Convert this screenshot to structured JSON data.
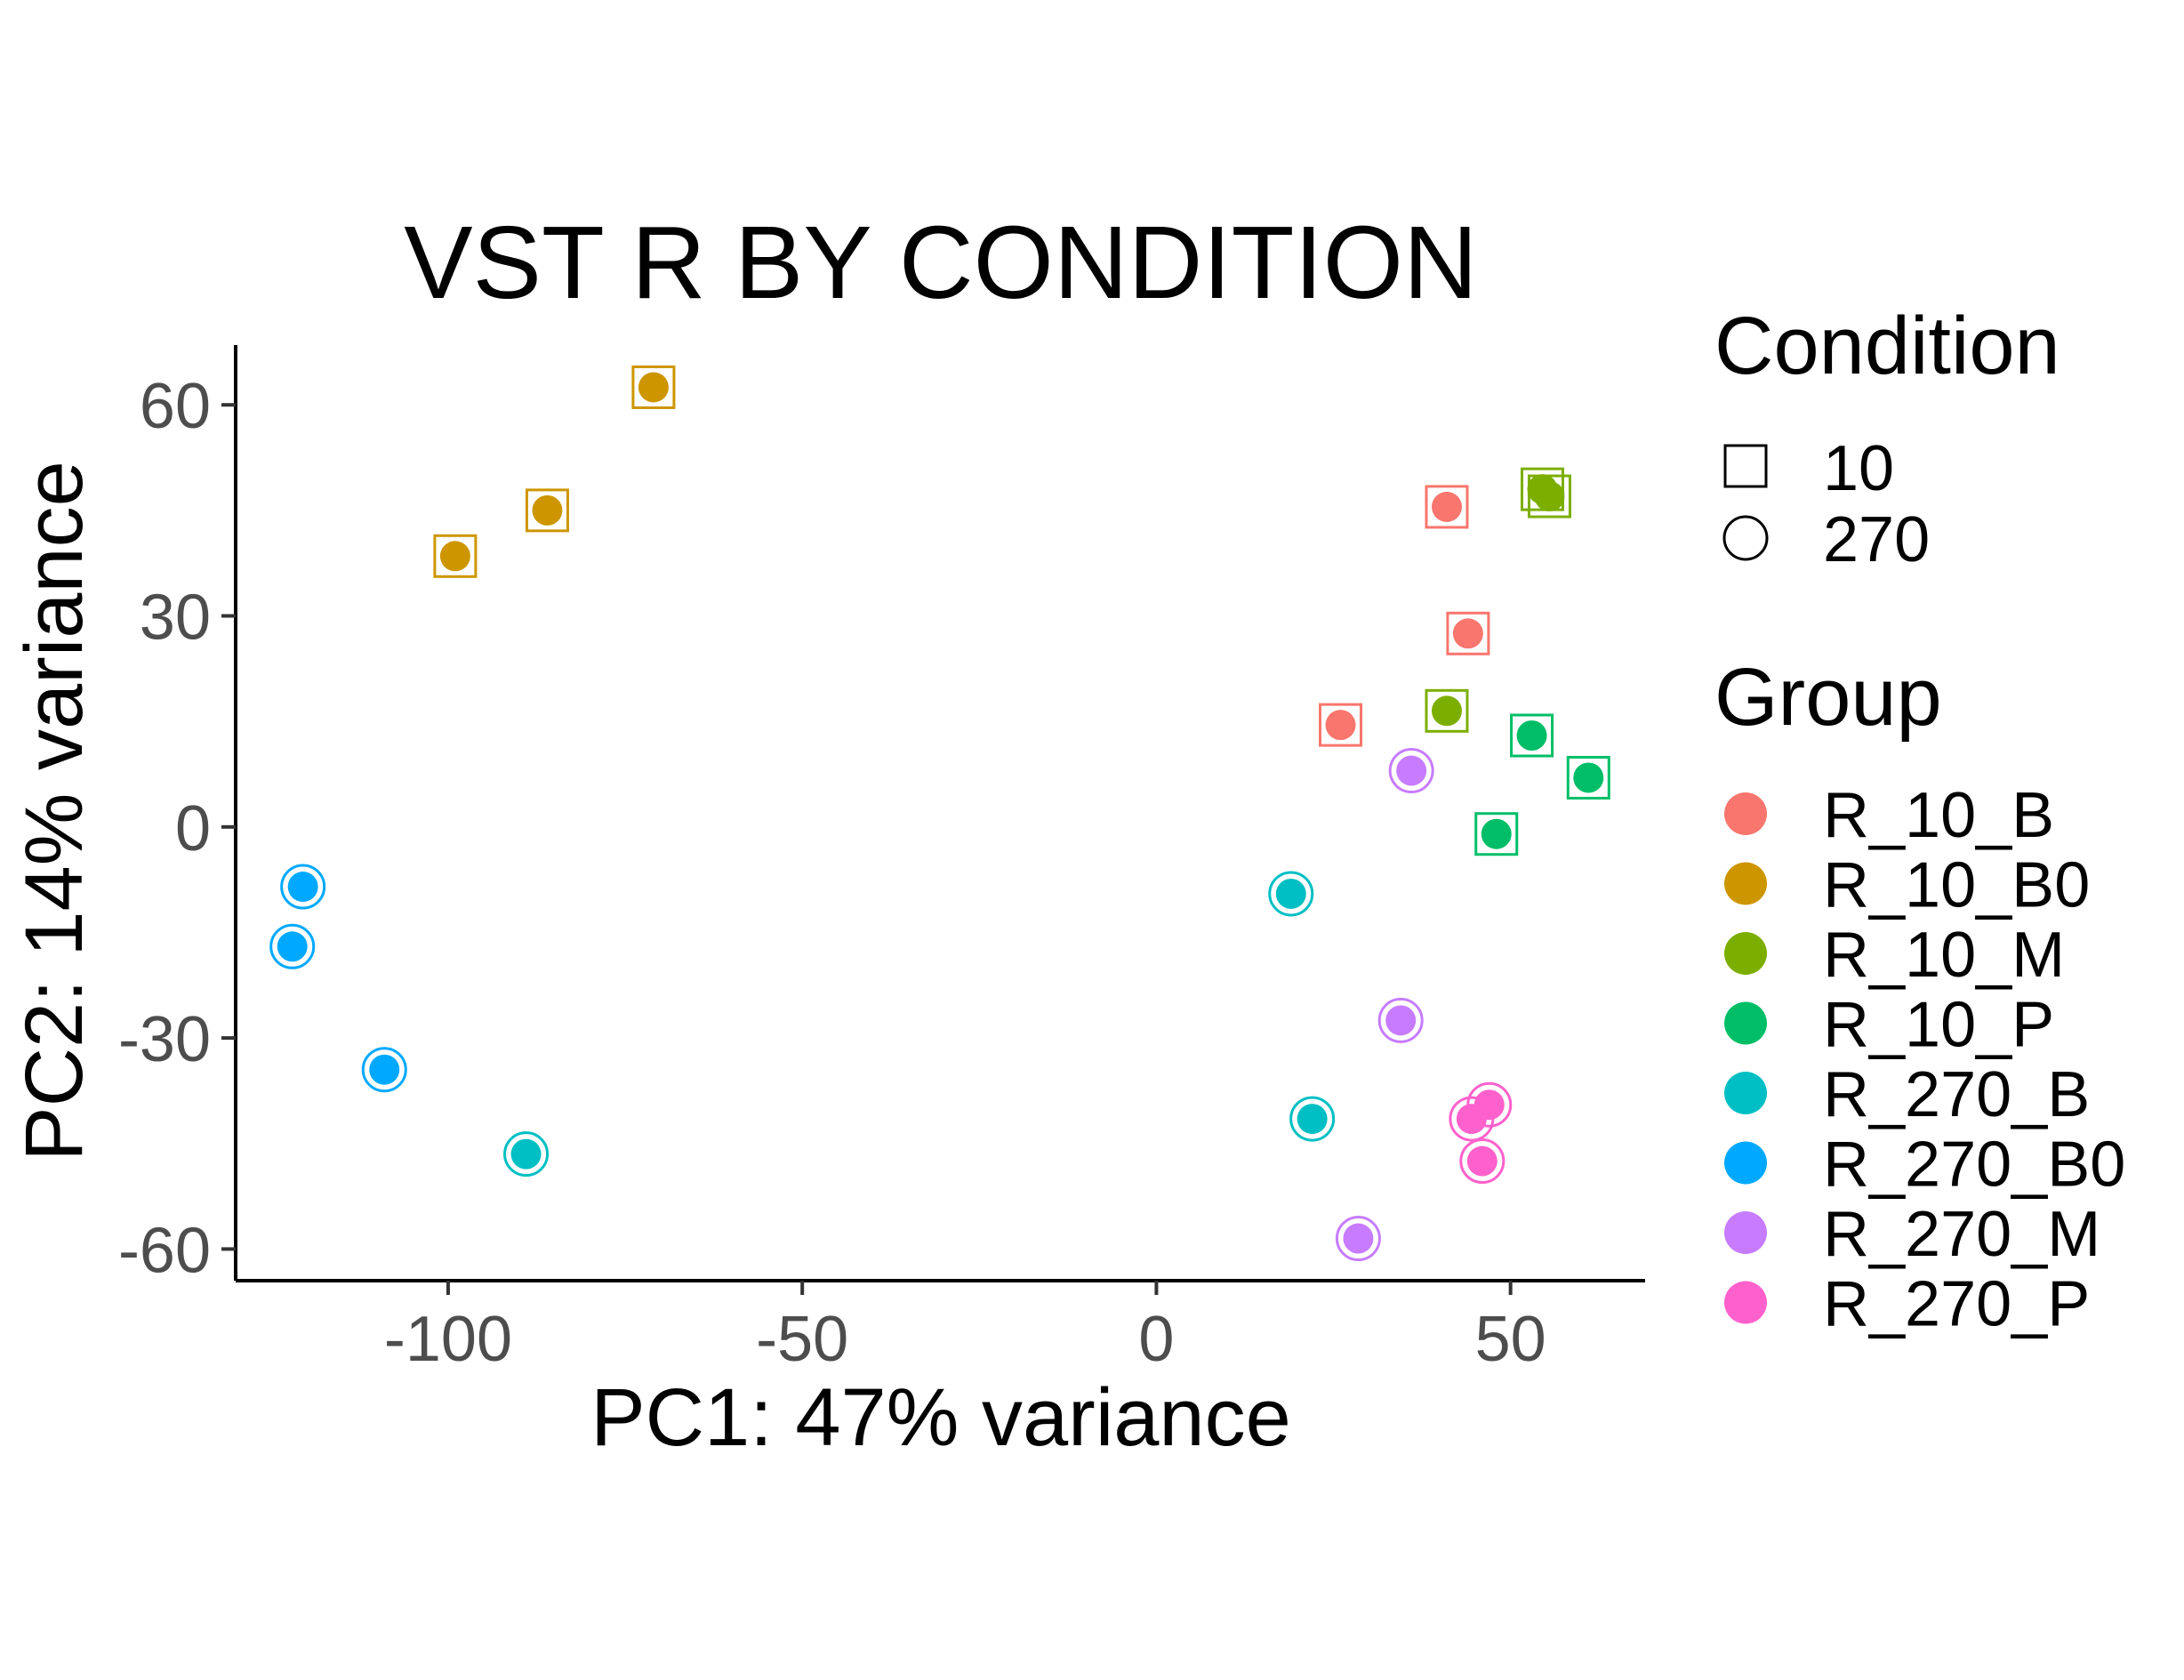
{
  "chart_data": {
    "type": "scatter",
    "title": "VST R BY CONDITION",
    "xlabel": "PC1: 47% variance",
    "ylabel": "PC2: 14% variance",
    "xlim": [
      -130,
      69
    ],
    "ylim": [
      -64.5,
      68.5
    ],
    "xticks": [
      -100,
      -50,
      0,
      50
    ],
    "xtick_labels": [
      "-100",
      "-50",
      "0",
      "50"
    ],
    "yticks": [
      60,
      30,
      0,
      -30,
      -60
    ],
    "ytick_labels": [
      "60",
      "30",
      "0",
      "-30",
      "-60"
    ],
    "grid": false,
    "legend_position": "right",
    "legends": {
      "shape": {
        "title": "Condition",
        "items": [
          {
            "label": "10",
            "shape": "square"
          },
          {
            "label": "270",
            "shape": "circle"
          }
        ]
      },
      "color": {
        "title": "Group",
        "items": [
          {
            "label": "R_10_B",
            "color": "#F8766D"
          },
          {
            "label": "R_10_B0",
            "color": "#CD9600"
          },
          {
            "label": "R_10_M",
            "color": "#7CAE00"
          },
          {
            "label": "R_10_P",
            "color": "#00BE67"
          },
          {
            "label": "R_270_B",
            "color": "#00BFC4"
          },
          {
            "label": "R_270_B0",
            "color": "#00A9FF"
          },
          {
            "label": "R_270_M",
            "color": "#C77CFF"
          },
          {
            "label": "R_270_P",
            "color": "#FF61CC"
          }
        ]
      }
    },
    "series": [
      {
        "name": "R_10_B",
        "condition": "10",
        "color": "#F8766D",
        "points": [
          {
            "x": 41,
            "y": 45.5
          },
          {
            "x": 44,
            "y": 27.5
          },
          {
            "x": 26,
            "y": 14.5
          }
        ]
      },
      {
        "name": "R_10_B0",
        "condition": "10",
        "color": "#CD9600",
        "points": [
          {
            "x": -71,
            "y": 62.5
          },
          {
            "x": -86,
            "y": 45
          },
          {
            "x": -99,
            "y": 38.5
          }
        ]
      },
      {
        "name": "R_10_M",
        "condition": "10",
        "color": "#7CAE00",
        "points": [
          {
            "x": 54.5,
            "y": 48
          },
          {
            "x": 55.5,
            "y": 47
          },
          {
            "x": 41,
            "y": 16.5
          }
        ]
      },
      {
        "name": "R_10_P",
        "condition": "10",
        "color": "#00BE67",
        "points": [
          {
            "x": 53,
            "y": 13
          },
          {
            "x": 61,
            "y": 7
          },
          {
            "x": 48,
            "y": -1
          }
        ]
      },
      {
        "name": "R_270_B",
        "condition": "270",
        "color": "#00BFC4",
        "points": [
          {
            "x": 19,
            "y": -9.5
          },
          {
            "x": 22,
            "y": -41.5
          },
          {
            "x": -89,
            "y": -46.5
          }
        ]
      },
      {
        "name": "R_270_B0",
        "condition": "270",
        "color": "#00A9FF",
        "points": [
          {
            "x": -120.5,
            "y": -8.5
          },
          {
            "x": -122,
            "y": -17
          },
          {
            "x": -109,
            "y": -34.5
          }
        ]
      },
      {
        "name": "R_270_M",
        "condition": "270",
        "color": "#C77CFF",
        "points": [
          {
            "x": 36,
            "y": 8
          },
          {
            "x": 34.5,
            "y": -27.5
          },
          {
            "x": 28.5,
            "y": -58.5
          }
        ]
      },
      {
        "name": "R_270_P",
        "condition": "270",
        "color": "#FF61CC",
        "points": [
          {
            "x": 47,
            "y": -39.5
          },
          {
            "x": 44.5,
            "y": -41.5
          },
          {
            "x": 46,
            "y": -47.5
          }
        ]
      }
    ]
  }
}
